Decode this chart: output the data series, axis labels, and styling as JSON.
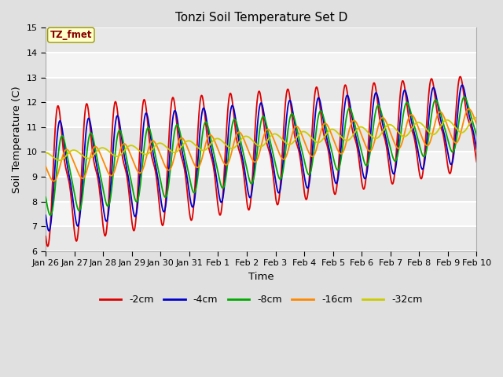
{
  "title": "Tonzi Soil Temperature Set D",
  "xlabel": "Time",
  "ylabel": "Soil Temperature (C)",
  "ylim": [
    6.0,
    15.0
  ],
  "yticks": [
    6.0,
    7.0,
    8.0,
    9.0,
    10.0,
    11.0,
    12.0,
    13.0,
    14.0,
    15.0
  ],
  "xtick_labels": [
    "Jan 26",
    "Jan 27",
    "Jan 28",
    "Jan 29",
    "Jan 30",
    "Jan 31",
    "Feb 1",
    "Feb 2",
    "Feb 3",
    "Feb 4",
    "Feb 5",
    "Feb 6",
    "Feb 7",
    "Feb 8",
    "Feb 9",
    "Feb 10"
  ],
  "series_colors": [
    "#dd0000",
    "#0000cc",
    "#00aa00",
    "#ff8800",
    "#cccc00"
  ],
  "series_labels": [
    "-2cm",
    "-4cm",
    "-8cm",
    "-16cm",
    "-32cm"
  ],
  "legend_label": "TZ_fmet",
  "legend_text_color": "#880000",
  "bg_color": "#e0e0e0",
  "plot_bg_color": "#f0f0f0",
  "linewidth": 1.3
}
